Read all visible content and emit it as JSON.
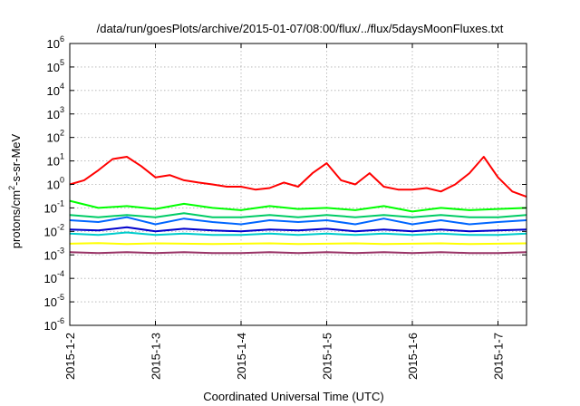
{
  "chart_data": {
    "type": "line",
    "title": "/data/run/goesPlots/archive/2015-01-07/08:00/flux/../flux/5daysMoonFluxes.txt",
    "xlabel": "Coordinated Universal Time (UTC)",
    "ylabel": {
      "pre": "protons/cm",
      "sup": "2",
      "post": "-s-sr-MeV"
    },
    "yscale": "log",
    "ylim": [
      1e-06,
      1000000.0
    ],
    "yticks": [
      {
        "value": 1e-06,
        "base": "10",
        "exp": "-6"
      },
      {
        "value": 1e-05,
        "base": "10",
        "exp": "-5"
      },
      {
        "value": 0.0001,
        "base": "10",
        "exp": "-4"
      },
      {
        "value": 0.001,
        "base": "10",
        "exp": "-3"
      },
      {
        "value": 0.01,
        "base": "10",
        "exp": "-2"
      },
      {
        "value": 0.1,
        "base": "10",
        "exp": "-1"
      },
      {
        "value": 1,
        "base": "10",
        "exp": "0"
      },
      {
        "value": 10,
        "base": "10",
        "exp": "1"
      },
      {
        "value": 100,
        "base": "10",
        "exp": "2"
      },
      {
        "value": 1000,
        "base": "10",
        "exp": "3"
      },
      {
        "value": 10000,
        "base": "10",
        "exp": "4"
      },
      {
        "value": 100000,
        "base": "10",
        "exp": "5"
      },
      {
        "value": 1000000,
        "base": "10",
        "exp": "6"
      }
    ],
    "xlim": [
      "2015-01-02",
      "2015-01-07 08:00"
    ],
    "xticks": [
      "2015-1-2",
      "2015-1-3",
      "2015-1-4",
      "2015-1-5",
      "2015-1-6",
      "2015-1-7"
    ],
    "grid": true,
    "series": [
      {
        "color": "#ff0000",
        "x": [
          "2015-01-02 00:00",
          "2015-01-02 04:00",
          "2015-01-02 08:00",
          "2015-01-02 12:00",
          "2015-01-02 16:00",
          "2015-01-02 20:00",
          "2015-01-03 00:00",
          "2015-01-03 04:00",
          "2015-01-03 08:00",
          "2015-01-03 12:00",
          "2015-01-03 16:00",
          "2015-01-03 20:00",
          "2015-01-04 00:00",
          "2015-01-04 04:00",
          "2015-01-04 08:00",
          "2015-01-04 12:00",
          "2015-01-04 16:00",
          "2015-01-04 20:00",
          "2015-01-05 00:00",
          "2015-01-05 04:00",
          "2015-01-05 08:00",
          "2015-01-05 12:00",
          "2015-01-05 16:00",
          "2015-01-05 20:00",
          "2015-01-06 00:00",
          "2015-01-06 04:00",
          "2015-01-06 08:00",
          "2015-01-06 12:00",
          "2015-01-06 16:00",
          "2015-01-06 20:00",
          "2015-01-07 00:00",
          "2015-01-07 04:00",
          "2015-01-07 08:00"
        ],
        "y": [
          1.0,
          1.5,
          4,
          12,
          15,
          6,
          2,
          2.5,
          1.5,
          1.2,
          1.0,
          0.8,
          0.8,
          0.6,
          0.7,
          1.2,
          0.8,
          3,
          8,
          1.5,
          1.0,
          3,
          0.8,
          0.6,
          0.6,
          0.7,
          0.5,
          1.0,
          3,
          15,
          2,
          0.5,
          0.3
        ]
      },
      {
        "color": "#00ff00",
        "x": [
          "2015-01-02 00:00",
          "2015-01-02 08:00",
          "2015-01-02 16:00",
          "2015-01-03 00:00",
          "2015-01-03 08:00",
          "2015-01-03 16:00",
          "2015-01-04 00:00",
          "2015-01-04 08:00",
          "2015-01-04 16:00",
          "2015-01-05 00:00",
          "2015-01-05 08:00",
          "2015-01-05 16:00",
          "2015-01-06 00:00",
          "2015-01-06 08:00",
          "2015-01-06 16:00",
          "2015-01-07 00:00",
          "2015-01-07 08:00"
        ],
        "y": [
          0.2,
          0.1,
          0.12,
          0.09,
          0.15,
          0.1,
          0.08,
          0.12,
          0.09,
          0.1,
          0.08,
          0.12,
          0.07,
          0.1,
          0.08,
          0.09,
          0.1
        ]
      },
      {
        "color": "#00cc66",
        "x": [
          "2015-01-02 00:00",
          "2015-01-02 08:00",
          "2015-01-02 16:00",
          "2015-01-03 00:00",
          "2015-01-03 08:00",
          "2015-01-03 16:00",
          "2015-01-04 00:00",
          "2015-01-04 08:00",
          "2015-01-04 16:00",
          "2015-01-05 00:00",
          "2015-01-05 08:00",
          "2015-01-05 16:00",
          "2015-01-06 00:00",
          "2015-01-06 08:00",
          "2015-01-06 16:00",
          "2015-01-07 00:00",
          "2015-01-07 08:00"
        ],
        "y": [
          0.05,
          0.04,
          0.05,
          0.04,
          0.06,
          0.04,
          0.04,
          0.05,
          0.04,
          0.05,
          0.04,
          0.05,
          0.04,
          0.05,
          0.04,
          0.04,
          0.05
        ]
      },
      {
        "color": "#0066ff",
        "x": [
          "2015-01-02 00:00",
          "2015-01-02 08:00",
          "2015-01-02 16:00",
          "2015-01-03 00:00",
          "2015-01-03 08:00",
          "2015-01-03 16:00",
          "2015-01-04 00:00",
          "2015-01-04 08:00",
          "2015-01-04 16:00",
          "2015-01-05 00:00",
          "2015-01-05 08:00",
          "2015-01-05 16:00",
          "2015-01-06 00:00",
          "2015-01-06 08:00",
          "2015-01-06 16:00",
          "2015-01-07 00:00",
          "2015-01-07 08:00"
        ],
        "y": [
          0.03,
          0.025,
          0.04,
          0.02,
          0.035,
          0.025,
          0.02,
          0.03,
          0.025,
          0.03,
          0.02,
          0.035,
          0.02,
          0.03,
          0.02,
          0.025,
          0.03
        ]
      },
      {
        "color": "#00cccc",
        "x": [
          "2015-01-02 00:00",
          "2015-01-02 08:00",
          "2015-01-02 16:00",
          "2015-01-03 00:00",
          "2015-01-03 08:00",
          "2015-01-03 16:00",
          "2015-01-04 00:00",
          "2015-01-04 08:00",
          "2015-01-04 16:00",
          "2015-01-05 00:00",
          "2015-01-05 08:00",
          "2015-01-05 16:00",
          "2015-01-06 00:00",
          "2015-01-06 08:00",
          "2015-01-06 16:00",
          "2015-01-07 00:00",
          "2015-01-07 08:00"
        ],
        "y": [
          0.008,
          0.007,
          0.009,
          0.007,
          0.008,
          0.007,
          0.007,
          0.008,
          0.007,
          0.008,
          0.007,
          0.008,
          0.007,
          0.008,
          0.007,
          0.007,
          0.008
        ]
      },
      {
        "color": "#0000cc",
        "x": [
          "2015-01-02 00:00",
          "2015-01-02 08:00",
          "2015-01-02 16:00",
          "2015-01-03 00:00",
          "2015-01-03 08:00",
          "2015-01-03 16:00",
          "2015-01-04 00:00",
          "2015-01-04 08:00",
          "2015-01-04 16:00",
          "2015-01-05 00:00",
          "2015-01-05 08:00",
          "2015-01-05 16:00",
          "2015-01-06 00:00",
          "2015-01-06 08:00",
          "2015-01-06 16:00",
          "2015-01-07 00:00",
          "2015-01-07 08:00"
        ],
        "y": [
          0.012,
          0.011,
          0.015,
          0.01,
          0.013,
          0.011,
          0.01,
          0.012,
          0.011,
          0.013,
          0.01,
          0.012,
          0.01,
          0.012,
          0.01,
          0.011,
          0.012
        ]
      },
      {
        "color": "#ffff00",
        "x": [
          "2015-01-02 00:00",
          "2015-01-02 08:00",
          "2015-01-02 16:00",
          "2015-01-03 00:00",
          "2015-01-03 08:00",
          "2015-01-03 16:00",
          "2015-01-04 00:00",
          "2015-01-04 08:00",
          "2015-01-04 16:00",
          "2015-01-05 00:00",
          "2015-01-05 08:00",
          "2015-01-05 16:00",
          "2015-01-06 00:00",
          "2015-01-06 08:00",
          "2015-01-06 16:00",
          "2015-01-07 00:00",
          "2015-01-07 08:00"
        ],
        "y": [
          0.003,
          0.0032,
          0.0029,
          0.0031,
          0.003,
          0.0029,
          0.003,
          0.0031,
          0.0029,
          0.003,
          0.0031,
          0.0029,
          0.003,
          0.0031,
          0.0029,
          0.003,
          0.0031
        ]
      },
      {
        "color": "#993366",
        "x": [
          "2015-01-02 00:00",
          "2015-01-02 08:00",
          "2015-01-02 16:00",
          "2015-01-03 00:00",
          "2015-01-03 08:00",
          "2015-01-03 16:00",
          "2015-01-04 00:00",
          "2015-01-04 08:00",
          "2015-01-04 16:00",
          "2015-01-05 00:00",
          "2015-01-05 08:00",
          "2015-01-05 16:00",
          "2015-01-06 00:00",
          "2015-01-06 08:00",
          "2015-01-06 16:00",
          "2015-01-07 00:00",
          "2015-01-07 08:00"
        ],
        "y": [
          0.0013,
          0.0012,
          0.0013,
          0.0012,
          0.0013,
          0.0012,
          0.0012,
          0.0013,
          0.0012,
          0.0013,
          0.0012,
          0.0013,
          0.0012,
          0.0013,
          0.0012,
          0.0012,
          0.0013
        ]
      }
    ]
  }
}
